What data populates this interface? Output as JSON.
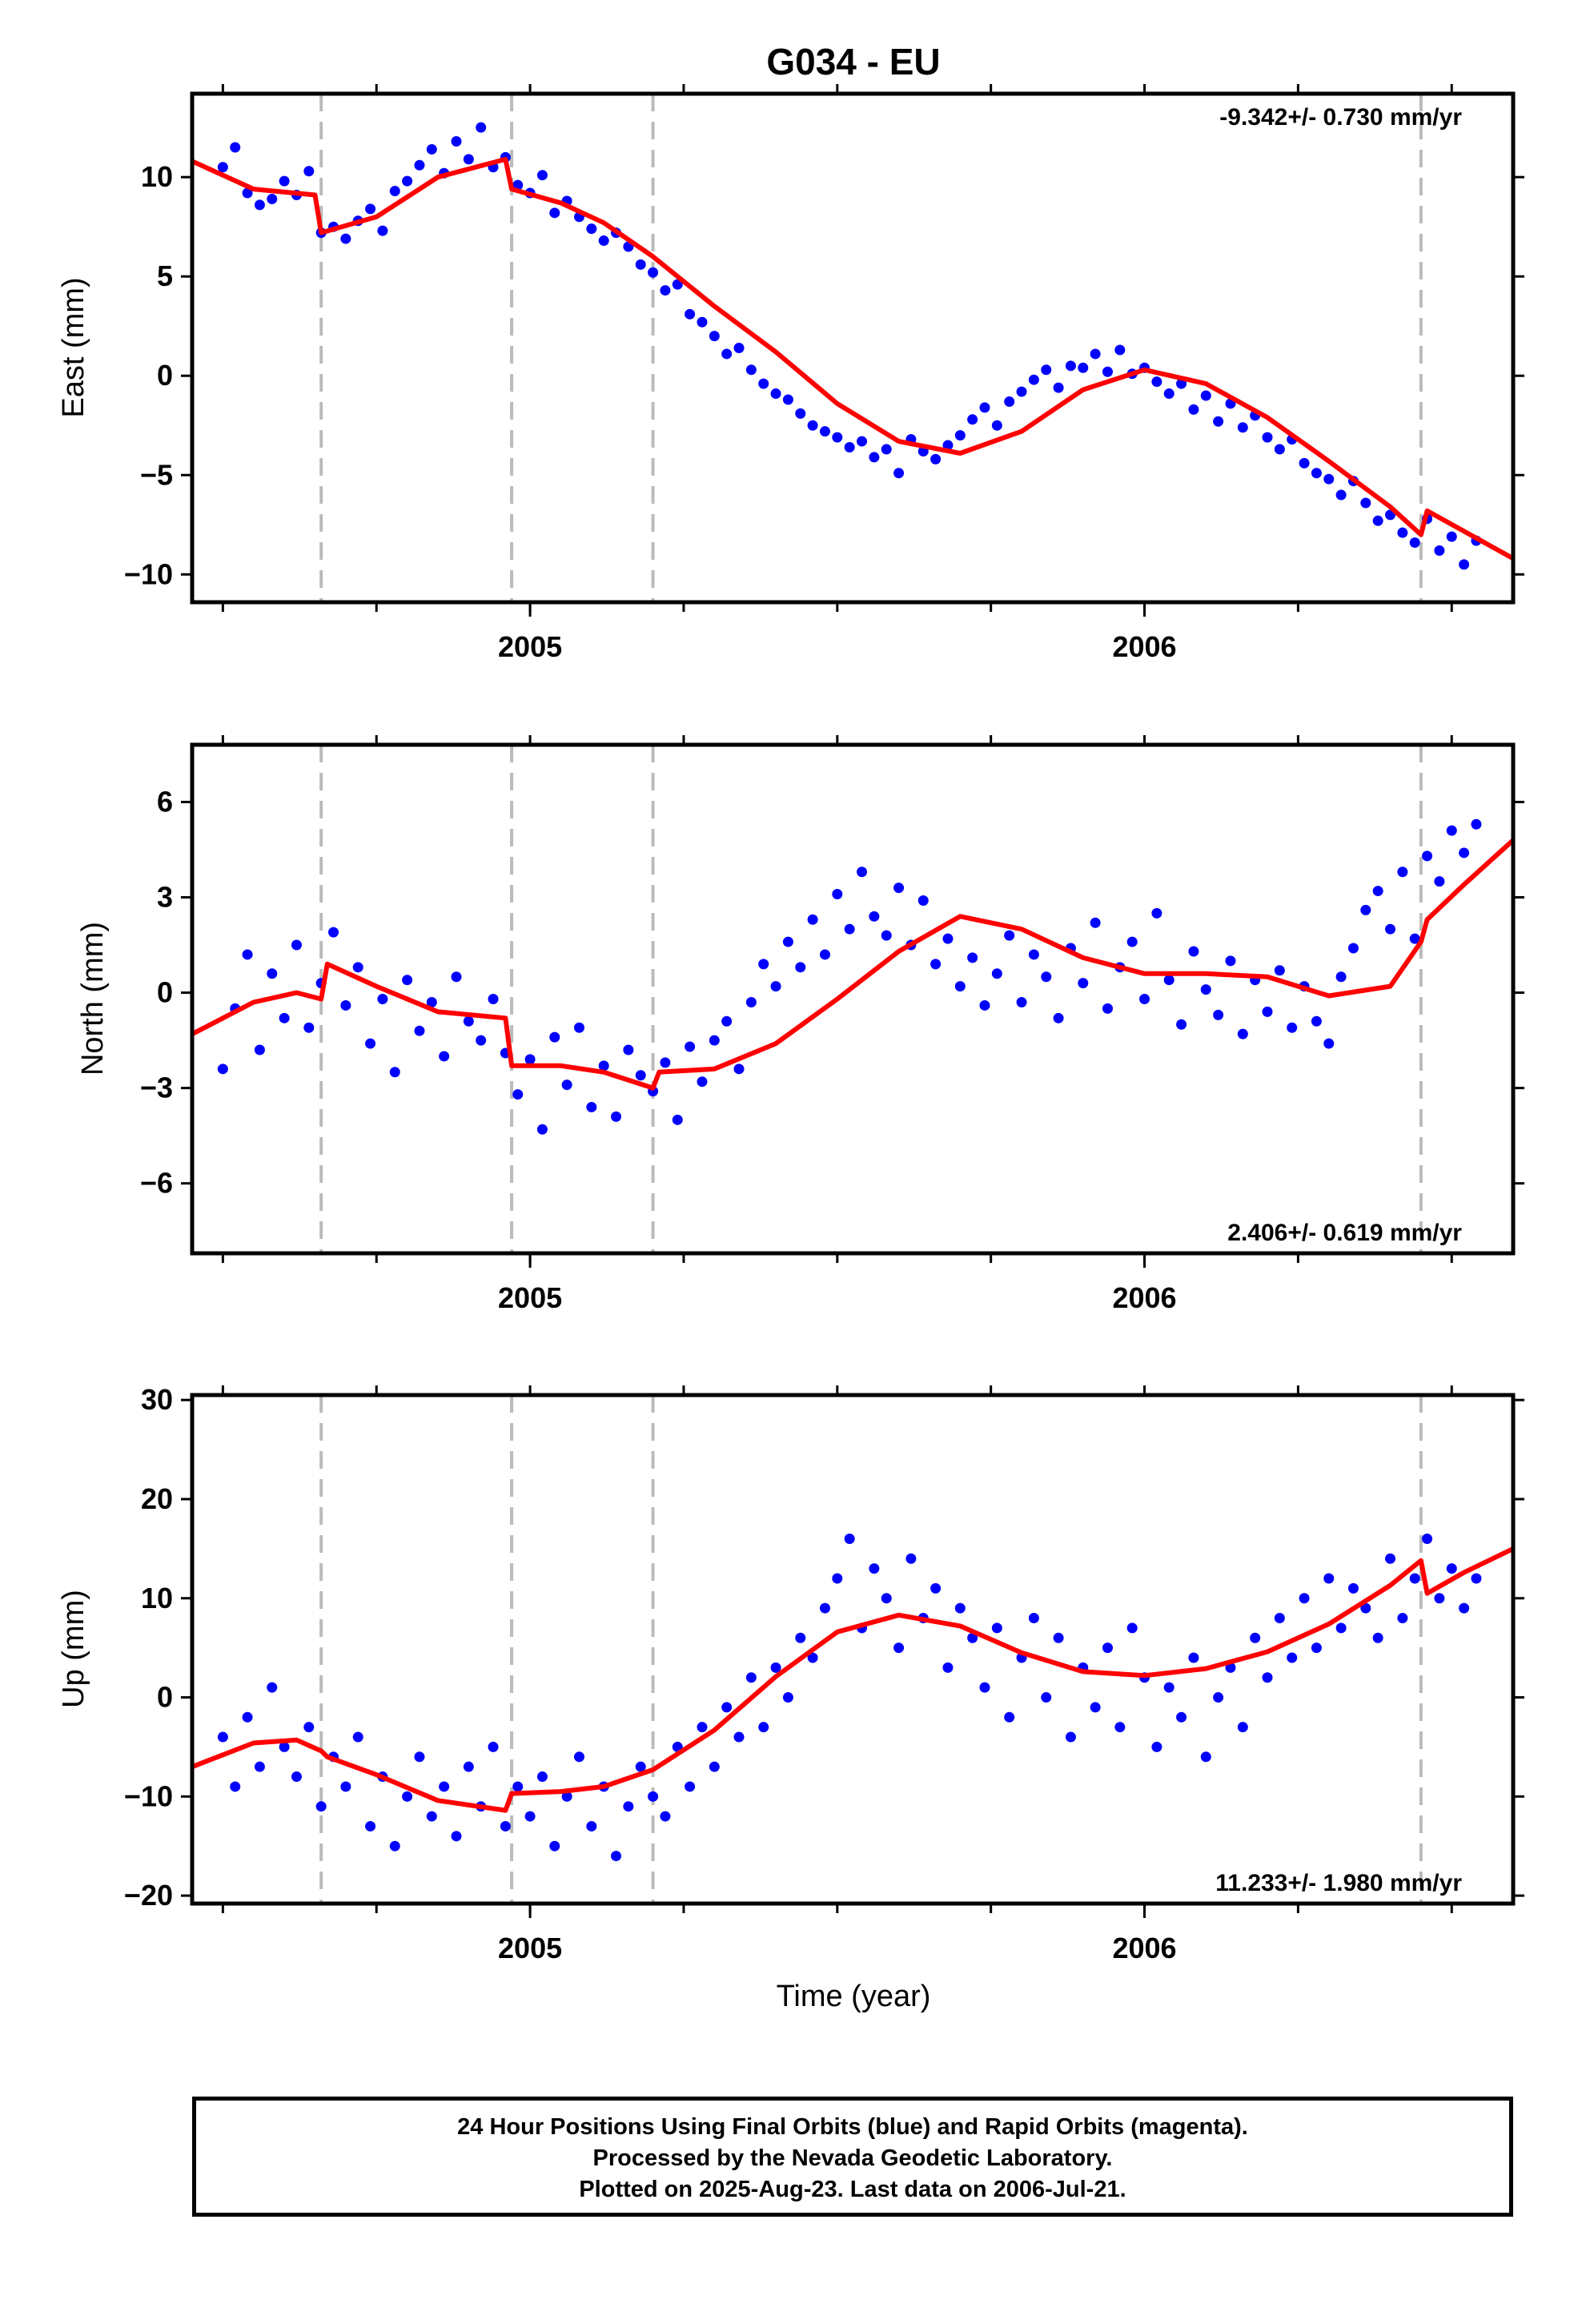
{
  "colors": {
    "observations": "#0000ff",
    "model": "#ff0000",
    "event_lines": "#bbbbbb",
    "frame": "#000000"
  },
  "footer": {
    "line1": "24 Hour Positions Using Final Orbits (blue) and Rapid Orbits (magenta).",
    "line2": "Processed by the Nevada Geodetic Laboratory.",
    "line3": "Plotted on 2025-Aug-23. Last data on 2006-Jul-21."
  },
  "chart_data": [
    {
      "type": "scatter",
      "title": "G034 - EU",
      "ylabel": "East (mm)",
      "xlabel": "",
      "rate_label": "-9.342+/- 0.730 mm/yr",
      "rate_position": "top-right",
      "xlim": [
        2004.45,
        2006.6
      ],
      "ylim": [
        -11.4,
        14.2
      ],
      "yticks": [
        -10,
        -5,
        0,
        5,
        10
      ],
      "ytick_labels": [
        "−10",
        "−5",
        "0",
        "5",
        "10"
      ],
      "xticks": [
        2005,
        2006
      ],
      "xtick_labels": [
        "2005",
        "2006"
      ],
      "event_lines": [
        2004.66,
        2004.97,
        2005.2,
        2006.45
      ],
      "series": [
        {
          "kind": "points",
          "x": [
            2004.5,
            2004.52,
            2004.54,
            2004.56,
            2004.58,
            2004.6,
            2004.62,
            2004.64,
            2004.66,
            2004.68,
            2004.7,
            2004.72,
            2004.74,
            2004.76,
            2004.78,
            2004.8,
            2004.82,
            2004.84,
            2004.86,
            2004.88,
            2004.9,
            2004.92,
            2004.94,
            2004.96,
            2004.98,
            2005,
            2005.02,
            2005.04,
            2005.06,
            2005.08,
            2005.1,
            2005.12,
            2005.14,
            2005.16,
            2005.18,
            2005.2,
            2005.22,
            2005.24,
            2005.26,
            2005.28,
            2005.3,
            2005.32,
            2005.34,
            2005.36,
            2005.38,
            2005.4,
            2005.42,
            2005.44,
            2005.46,
            2005.48,
            2005.5,
            2005.52,
            2005.54,
            2005.56,
            2005.58,
            2005.6,
            2005.62,
            2005.64,
            2005.66,
            2005.68,
            2005.7,
            2005.72,
            2005.74,
            2005.76,
            2005.78,
            2005.8,
            2005.82,
            2005.84,
            2005.86,
            2005.88,
            2005.9,
            2005.92,
            2005.94,
            2005.96,
            2005.98,
            2006,
            2006.02,
            2006.04,
            2006.06,
            2006.08,
            2006.1,
            2006.12,
            2006.14,
            2006.16,
            2006.18,
            2006.2,
            2006.22,
            2006.24,
            2006.26,
            2006.28,
            2006.3,
            2006.32,
            2006.34,
            2006.36,
            2006.38,
            2006.4,
            2006.42,
            2006.44,
            2006.46,
            2006.48,
            2006.5,
            2006.52,
            2006.54
          ],
          "y": [
            10.5,
            11.5,
            9.2,
            8.6,
            8.9,
            9.8,
            9.1,
            10.3,
            7.2,
            7.5,
            6.9,
            7.8,
            8.4,
            7.3,
            9.3,
            9.8,
            10.6,
            11.4,
            10.2,
            11.8,
            10.9,
            12.5,
            10.5,
            11.0,
            9.6,
            9.2,
            10.1,
            8.2,
            8.8,
            8.0,
            7.4,
            6.8,
            7.2,
            6.5,
            5.6,
            5.2,
            4.3,
            4.6,
            3.1,
            2.7,
            2.0,
            1.1,
            1.4,
            0.3,
            -0.4,
            -0.9,
            -1.2,
            -1.9,
            -2.5,
            -2.8,
            -3.1,
            -3.6,
            -3.3,
            -4.1,
            -3.7,
            -4.9,
            -3.2,
            -3.8,
            -4.2,
            -3.5,
            -3.0,
            -2.2,
            -1.6,
            -2.5,
            -1.3,
            -0.8,
            -0.2,
            0.3,
            -0.6,
            0.5,
            0.4,
            1.1,
            0.2,
            1.3,
            0.1,
            0.4,
            -0.3,
            -0.9,
            -0.4,
            -1.7,
            -1.0,
            -2.3,
            -1.4,
            -2.6,
            -2.0,
            -3.1,
            -3.7,
            -3.2,
            -4.4,
            -4.9,
            -5.2,
            -6.0,
            -5.3,
            -6.4,
            -7.3,
            -7.0,
            -7.9,
            -8.4,
            -7.2,
            -8.8,
            -8.1,
            -9.5,
            -8.3
          ]
        },
        {
          "kind": "model",
          "x": [
            2004.45,
            2004.55,
            2004.65,
            2004.66,
            2004.75,
            2004.85,
            2004.96,
            2004.97,
            2005.05,
            2005.12,
            2005.2,
            2005.3,
            2005.4,
            2005.5,
            2005.6,
            2005.7,
            2005.8,
            2005.9,
            2006,
            2006.1,
            2006.2,
            2006.3,
            2006.4,
            2006.45,
            2006.46,
            2006.6
          ],
          "y": [
            10.8,
            9.4,
            9.1,
            7.2,
            8.0,
            10.0,
            10.9,
            9.4,
            8.7,
            7.7,
            6.0,
            3.5,
            1.2,
            -1.4,
            -3.3,
            -3.9,
            -2.8,
            -0.7,
            0.3,
            -0.4,
            -2.1,
            -4.3,
            -6.6,
            -8.0,
            -6.8,
            -9.2
          ]
        }
      ]
    },
    {
      "type": "scatter",
      "title": "",
      "ylabel": "North (mm)",
      "xlabel": "",
      "rate_label": "2.406+/- 0.619 mm/yr",
      "rate_position": "bottom-right",
      "xlim": [
        2004.45,
        2006.6
      ],
      "ylim": [
        -8.2,
        7.8
      ],
      "yticks": [
        -6,
        -3,
        0,
        3,
        6
      ],
      "ytick_labels": [
        "−6",
        "−3",
        "0",
        "3",
        "6"
      ],
      "xticks": [
        2005,
        2006
      ],
      "xtick_labels": [
        "2005",
        "2006"
      ],
      "event_lines": [
        2004.66,
        2004.97,
        2005.2,
        2006.45
      ],
      "series": [
        {
          "kind": "points",
          "x": [
            2004.5,
            2004.52,
            2004.54,
            2004.56,
            2004.58,
            2004.6,
            2004.62,
            2004.64,
            2004.66,
            2004.68,
            2004.7,
            2004.72,
            2004.74,
            2004.76,
            2004.78,
            2004.8,
            2004.82,
            2004.84,
            2004.86,
            2004.88,
            2004.9,
            2004.92,
            2004.94,
            2004.96,
            2004.98,
            2005,
            2005.02,
            2005.04,
            2005.06,
            2005.08,
            2005.1,
            2005.12,
            2005.14,
            2005.16,
            2005.18,
            2005.2,
            2005.22,
            2005.24,
            2005.26,
            2005.28,
            2005.3,
            2005.32,
            2005.34,
            2005.36,
            2005.38,
            2005.4,
            2005.42,
            2005.44,
            2005.46,
            2005.48,
            2005.5,
            2005.52,
            2005.54,
            2005.56,
            2005.58,
            2005.6,
            2005.62,
            2005.64,
            2005.66,
            2005.68,
            2005.7,
            2005.72,
            2005.74,
            2005.76,
            2005.78,
            2005.8,
            2005.82,
            2005.84,
            2005.86,
            2005.88,
            2005.9,
            2005.92,
            2005.94,
            2005.96,
            2005.98,
            2006,
            2006.02,
            2006.04,
            2006.06,
            2006.08,
            2006.1,
            2006.12,
            2006.14,
            2006.16,
            2006.18,
            2006.2,
            2006.22,
            2006.24,
            2006.26,
            2006.28,
            2006.3,
            2006.32,
            2006.34,
            2006.36,
            2006.38,
            2006.4,
            2006.42,
            2006.44,
            2006.46,
            2006.48,
            2006.5,
            2006.52,
            2006.54
          ],
          "y": [
            -2.4,
            -0.5,
            1.2,
            -1.8,
            0.6,
            -0.8,
            1.5,
            -1.1,
            0.3,
            1.9,
            -0.4,
            0.8,
            -1.6,
            -0.2,
            -2.5,
            0.4,
            -1.2,
            -0.3,
            -2.0,
            0.5,
            -0.9,
            -1.5,
            -0.2,
            -1.9,
            -3.2,
            -2.1,
            -4.3,
            -1.4,
            -2.9,
            -1.1,
            -3.6,
            -2.3,
            -3.9,
            -1.8,
            -2.6,
            -3.1,
            -2.2,
            -4.0,
            -1.7,
            -2.8,
            -1.5,
            -0.9,
            -2.4,
            -0.3,
            0.9,
            0.2,
            1.6,
            0.8,
            2.3,
            1.2,
            3.1,
            2.0,
            3.8,
            2.4,
            1.8,
            3.3,
            1.5,
            2.9,
            0.9,
            1.7,
            0.2,
            1.1,
            -0.4,
            0.6,
            1.8,
            -0.3,
            1.2,
            0.5,
            -0.8,
            1.4,
            0.3,
            2.2,
            -0.5,
            0.8,
            1.6,
            -0.2,
            2.5,
            0.4,
            -1.0,
            1.3,
            0.1,
            -0.7,
            1.0,
            -1.3,
            0.4,
            -0.6,
            0.7,
            -1.1,
            0.2,
            -0.9,
            -1.6,
            0.5,
            1.4,
            2.6,
            3.2,
            2.0,
            3.8,
            1.7,
            4.3,
            3.5,
            5.1,
            4.4,
            5.3
          ]
        },
        {
          "kind": "model",
          "x": [
            2004.45,
            2004.55,
            2004.62,
            2004.66,
            2004.67,
            2004.75,
            2004.85,
            2004.96,
            2004.97,
            2005.05,
            2005.12,
            2005.2,
            2005.21,
            2005.3,
            2005.4,
            2005.5,
            2005.6,
            2005.7,
            2005.8,
            2005.9,
            2006,
            2006.1,
            2006.2,
            2006.3,
            2006.4,
            2006.45,
            2006.46,
            2006.52,
            2006.6
          ],
          "y": [
            -1.3,
            -0.3,
            0.0,
            -0.2,
            0.9,
            0.2,
            -0.6,
            -0.8,
            -2.3,
            -2.3,
            -2.5,
            -3.0,
            -2.5,
            -2.4,
            -1.6,
            -0.2,
            1.3,
            2.4,
            2.0,
            1.1,
            0.6,
            0.6,
            0.5,
            -0.1,
            0.2,
            1.6,
            2.3,
            3.4,
            4.8
          ]
        }
      ]
    },
    {
      "type": "scatter",
      "title": "",
      "ylabel": "Up (mm)",
      "xlabel": "Time (year)",
      "rate_label": "11.233+/- 1.980 mm/yr",
      "rate_position": "bottom-right",
      "xlim": [
        2004.45,
        2006.6
      ],
      "ylim": [
        -20.8,
        30.5
      ],
      "yticks": [
        -20,
        -10,
        0,
        10,
        20,
        30
      ],
      "ytick_labels": [
        "−20",
        "−10",
        "0",
        "10",
        "20",
        "30"
      ],
      "xticks": [
        2005,
        2006
      ],
      "xtick_labels": [
        "2005",
        "2006"
      ],
      "event_lines": [
        2004.66,
        2004.97,
        2005.2,
        2006.45
      ],
      "series": [
        {
          "kind": "points",
          "x": [
            2004.5,
            2004.52,
            2004.54,
            2004.56,
            2004.58,
            2004.6,
            2004.62,
            2004.64,
            2004.66,
            2004.68,
            2004.7,
            2004.72,
            2004.74,
            2004.76,
            2004.78,
            2004.8,
            2004.82,
            2004.84,
            2004.86,
            2004.88,
            2004.9,
            2004.92,
            2004.94,
            2004.96,
            2004.98,
            2005,
            2005.02,
            2005.04,
            2005.06,
            2005.08,
            2005.1,
            2005.12,
            2005.14,
            2005.16,
            2005.18,
            2005.2,
            2005.22,
            2005.24,
            2005.26,
            2005.28,
            2005.3,
            2005.32,
            2005.34,
            2005.36,
            2005.38,
            2005.4,
            2005.42,
            2005.44,
            2005.46,
            2005.48,
            2005.5,
            2005.52,
            2005.54,
            2005.56,
            2005.58,
            2005.6,
            2005.62,
            2005.64,
            2005.66,
            2005.68,
            2005.7,
            2005.72,
            2005.74,
            2005.76,
            2005.78,
            2005.8,
            2005.82,
            2005.84,
            2005.86,
            2005.88,
            2005.9,
            2005.92,
            2005.94,
            2005.96,
            2005.98,
            2006,
            2006.02,
            2006.04,
            2006.06,
            2006.08,
            2006.1,
            2006.12,
            2006.14,
            2006.16,
            2006.18,
            2006.2,
            2006.22,
            2006.24,
            2006.26,
            2006.28,
            2006.3,
            2006.32,
            2006.34,
            2006.36,
            2006.38,
            2006.4,
            2006.42,
            2006.44,
            2006.46,
            2006.48,
            2006.5,
            2006.52,
            2006.54
          ],
          "y": [
            -4,
            -9,
            -2,
            -7,
            1,
            -5,
            -8,
            -3,
            -11,
            -6,
            -9,
            -4,
            -13,
            -8,
            -15,
            -10,
            -6,
            -12,
            -9,
            -14,
            -7,
            -11,
            -5,
            -13,
            -9,
            -12,
            -8,
            -15,
            -10,
            -6,
            -13,
            -9,
            -16,
            -11,
            -7,
            -10,
            -12,
            -5,
            -9,
            -3,
            -7,
            -1,
            -4,
            2,
            -3,
            3,
            0,
            6,
            4,
            9,
            12,
            16,
            7,
            13,
            10,
            5,
            14,
            8,
            11,
            3,
            9,
            6,
            1,
            7,
            -2,
            4,
            8,
            0,
            6,
            -4,
            3,
            -1,
            5,
            -3,
            7,
            2,
            -5,
            1,
            -2,
            4,
            -6,
            0,
            3,
            -3,
            6,
            2,
            8,
            4,
            10,
            5,
            12,
            7,
            11,
            9,
            6,
            14,
            8,
            12,
            16,
            10,
            13,
            9,
            12
          ]
        },
        {
          "kind": "model",
          "x": [
            2004.45,
            2004.55,
            2004.62,
            2004.66,
            2004.67,
            2004.75,
            2004.85,
            2004.96,
            2004.97,
            2005.05,
            2005.12,
            2005.2,
            2005.3,
            2005.4,
            2005.5,
            2005.6,
            2005.7,
            2005.8,
            2005.9,
            2006,
            2006.1,
            2006.2,
            2006.3,
            2006.4,
            2006.45,
            2006.46,
            2006.52,
            2006.6
          ],
          "y": [
            -7.0,
            -4.6,
            -4.3,
            -5.4,
            -6.0,
            -7.8,
            -10.4,
            -11.4,
            -9.7,
            -9.5,
            -9.0,
            -7.3,
            -3.3,
            2.1,
            6.6,
            8.3,
            7.2,
            4.5,
            2.6,
            2.2,
            2.9,
            4.6,
            7.4,
            11.3,
            13.8,
            10.5,
            12.6,
            15.0
          ]
        }
      ]
    }
  ]
}
